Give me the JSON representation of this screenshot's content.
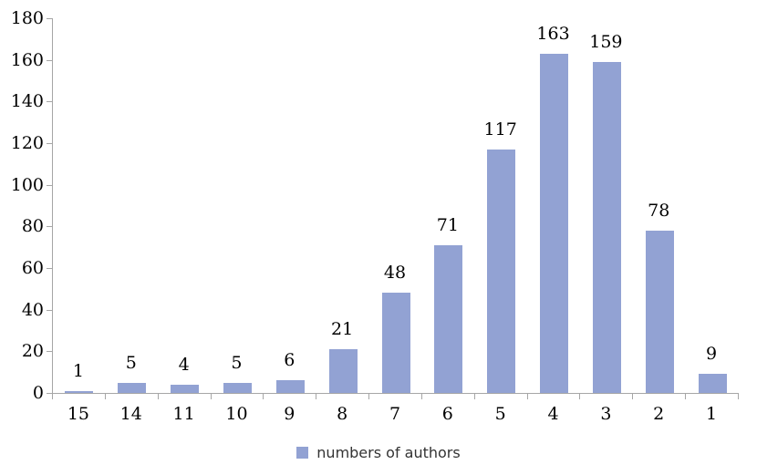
{
  "chart_data": {
    "type": "bar",
    "title": "",
    "categories": [
      "15",
      "14",
      "11",
      "10",
      "9",
      "8",
      "7",
      "6",
      "5",
      "4",
      "3",
      "2",
      "1"
    ],
    "values": [
      1,
      5,
      4,
      5,
      6,
      21,
      48,
      71,
      117,
      163,
      159,
      78,
      9
    ],
    "legend": "numbers of authors",
    "xlabel": "",
    "ylabel": "",
    "ylim": [
      0,
      180
    ],
    "ytick_step": 20,
    "grid": false,
    "legend_position": "bottom",
    "data_labels": "outside-end",
    "bar_color": "#92a2d3",
    "axis_color": "#a6a6a6",
    "text_color": "#000000"
  }
}
